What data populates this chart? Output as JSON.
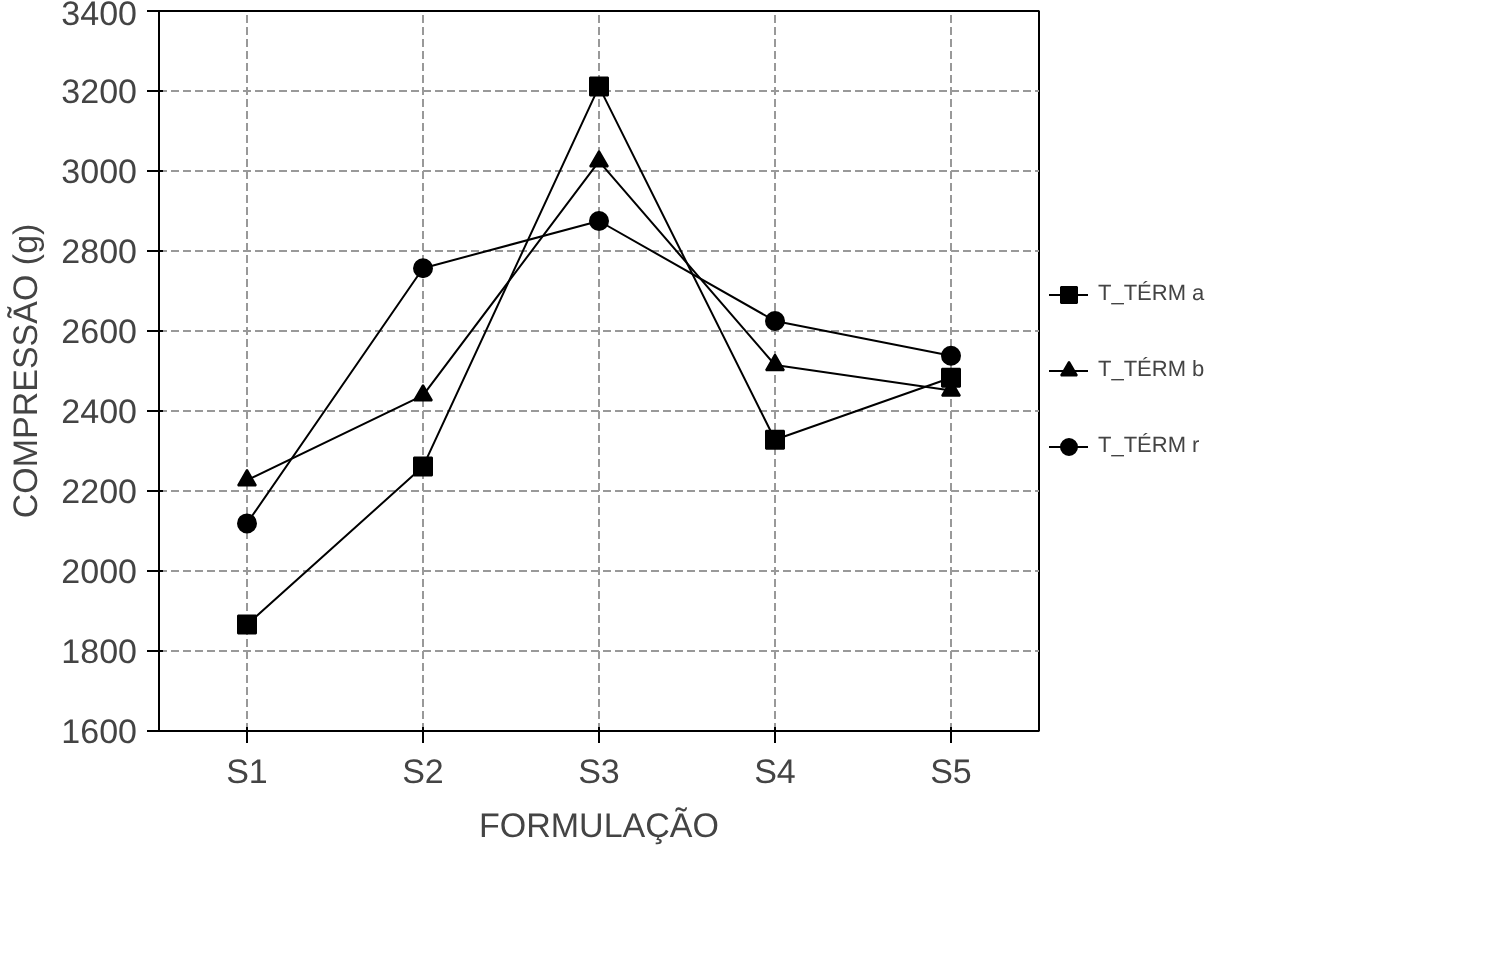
{
  "chart_data": {
    "type": "line",
    "xlabel": "FORMULAÇÃO",
    "ylabel": "COMPRESSÃO (g)",
    "categories": [
      "S1",
      "S2",
      "S3",
      "S4",
      "S5"
    ],
    "ylim": [
      1600,
      3400
    ],
    "yticks": [
      1600,
      1800,
      2000,
      2200,
      2400,
      2600,
      2800,
      3000,
      3200,
      3400
    ],
    "grid": true,
    "legend": "right",
    "series": [
      {
        "name": "T_TÉRM a",
        "color": "#000000",
        "marker": "square",
        "values": [
          1866,
          2261,
          3211,
          2328,
          2483
        ]
      },
      {
        "name": "T_TÉRM b",
        "color": "#000000",
        "marker": "triangle",
        "values": [
          2227,
          2439,
          3024,
          2515,
          2451
        ]
      },
      {
        "name": "T_TÉRM r",
        "color": "#000000",
        "marker": "circle",
        "values": [
          2119,
          2757,
          2875,
          2625,
          2538
        ]
      }
    ]
  }
}
